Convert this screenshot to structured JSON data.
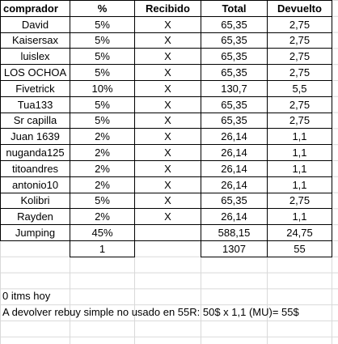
{
  "header": [
    "comprador",
    "%",
    "Recibido",
    "Total",
    "Devuelto"
  ],
  "rows": [
    [
      "David",
      "5%",
      "X",
      "65,35",
      "2,75"
    ],
    [
      "Kaisersax",
      "5%",
      "X",
      "65,35",
      "2,75"
    ],
    [
      "luislex",
      "5%",
      "X",
      "65,35",
      "2,75"
    ],
    [
      "LOS OCHOA",
      "5%",
      "X",
      "65,35",
      "2,75"
    ],
    [
      "Fivetrick",
      "10%",
      "X",
      "130,7",
      "5,5"
    ],
    [
      "Tua133",
      "5%",
      "X",
      "65,35",
      "2,75"
    ],
    [
      "Sr capilla",
      "5%",
      "X",
      "65,35",
      "2,75"
    ],
    [
      "Juan 1639",
      "2%",
      "X",
      "26,14",
      "1,1"
    ],
    [
      "nuganda125",
      "2%",
      "X",
      "26,14",
      "1,1"
    ],
    [
      "titoandres",
      "2%",
      "X",
      "26,14",
      "1,1"
    ],
    [
      "antonio10",
      "2%",
      "X",
      "26,14",
      "1,1"
    ],
    [
      "Kolibri",
      "5%",
      "X",
      "65,35",
      "2,75"
    ],
    [
      "Rayden",
      "2%",
      "X",
      "26,14",
      "1,1"
    ],
    [
      "Jumping",
      "45%",
      "",
      "588,15",
      "24,75"
    ]
  ],
  "totals": {
    "percent": "1",
    "total": "1307",
    "returned": "55"
  },
  "notes": [
    "0 itms hoy",
    "A devolver rebuy simple no usado en 55R: 50$ x 1,1 (MU)= 55$"
  ]
}
